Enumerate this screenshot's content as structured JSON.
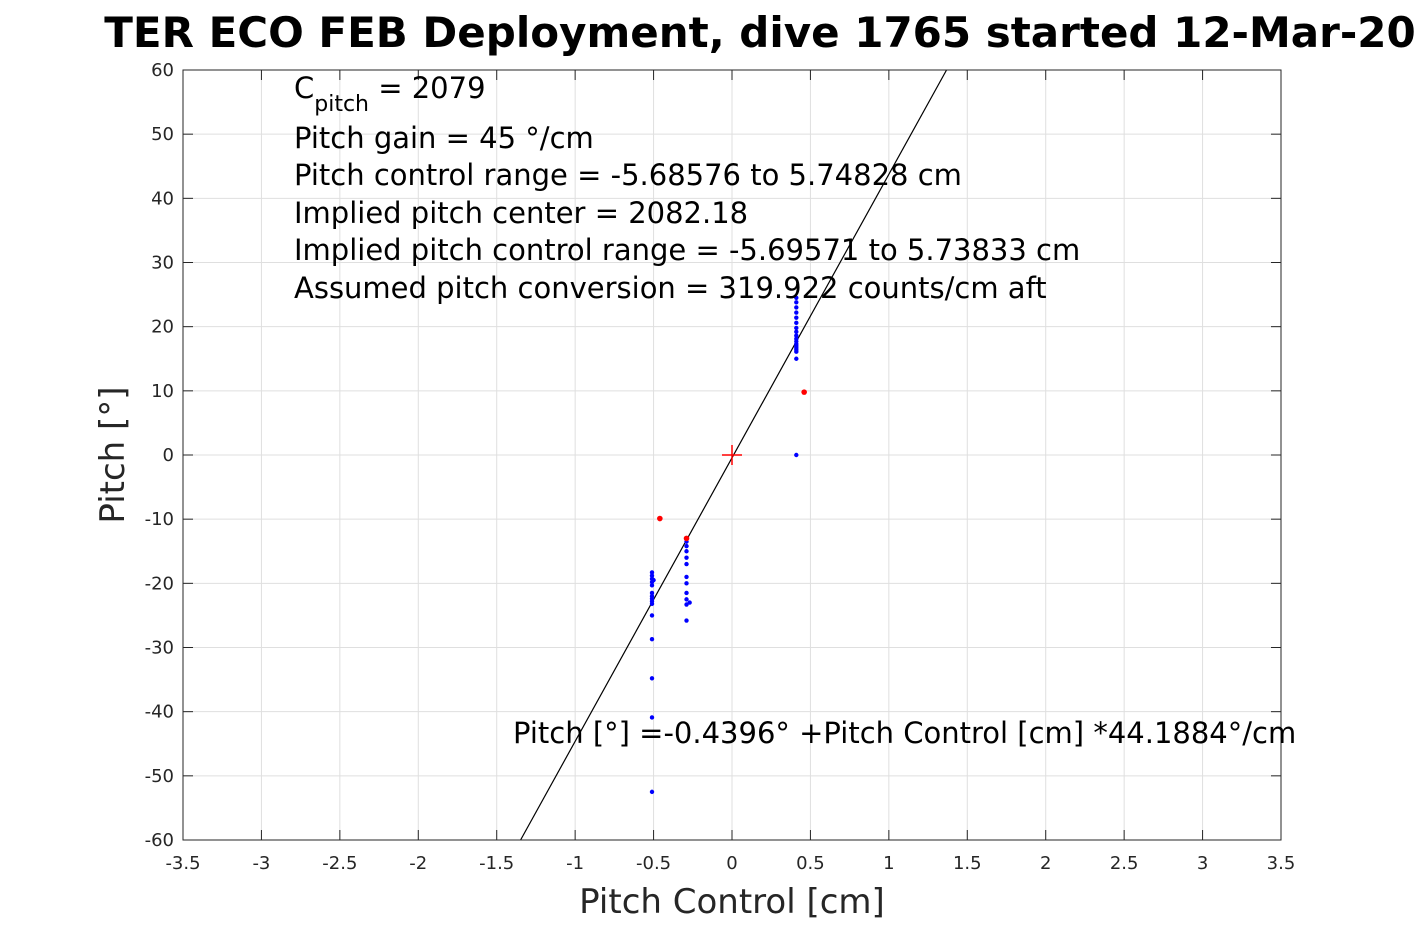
{
  "chart_data": {
    "type": "scatter",
    "title": "TER ECO FEB Deployment, dive 1765 started 12-Mar-20",
    "xlabel": "Pitch Control [cm]",
    "ylabel": "Pitch [°]",
    "xlim": [
      -3.5,
      3.5
    ],
    "ylim": [
      -60,
      60
    ],
    "xticks": [
      -3.5,
      -3,
      -2.5,
      -2,
      -1.5,
      -1,
      -0.5,
      0,
      0.5,
      1,
      1.5,
      2,
      2.5,
      3,
      3.5
    ],
    "xtick_labels": [
      "-3.5",
      "-3",
      "-2.5",
      "-2",
      "-1.5",
      "-1",
      "-0.5",
      "0",
      "0.5",
      "1",
      "1.5",
      "2",
      "2.5",
      "3",
      "3.5"
    ],
    "yticks": [
      -60,
      -50,
      -40,
      -30,
      -20,
      -10,
      0,
      10,
      20,
      30,
      40,
      50,
      60
    ],
    "ytick_labels": [
      "-60",
      "-50",
      "-40",
      "-30",
      "-20",
      "-10",
      "0",
      "10",
      "20",
      "30",
      "40",
      "50",
      "60"
    ],
    "grid": true,
    "annotations": {
      "c_pitch_symbol": "C",
      "c_pitch_subscript": "pitch",
      "c_pitch_value": " = 2079",
      "pitch_gain": "Pitch gain = 45 °/cm",
      "control_range": "Pitch control range = -5.68576 to 5.74828 cm",
      "implied_center": "Implied pitch center = 2082.18",
      "implied_range": "Implied pitch control range = -5.69571 to 5.73833 cm",
      "conversion": "Assumed pitch conversion = 319.922 counts/cm aft",
      "fit_equation": "Pitch [°] =-0.4396° +Pitch Control [cm] *44.1884°/cm"
    },
    "fit_line": {
      "intercept": -0.4396,
      "slope": 44.1884,
      "color": "#000000"
    },
    "center_marker": {
      "x": 0,
      "y": 0,
      "color": "#ff0000"
    },
    "series": [
      {
        "color": "#0000ff",
        "points": [
          [
            0.41,
            24.5
          ],
          [
            0.41,
            23.8
          ],
          [
            0.41,
            23.0
          ],
          [
            0.41,
            22.2
          ],
          [
            0.41,
            21.4
          ],
          [
            0.41,
            20.6
          ],
          [
            0.41,
            19.8
          ],
          [
            0.41,
            19.2
          ],
          [
            0.41,
            18.6
          ],
          [
            0.41,
            18.1
          ],
          [
            0.41,
            17.7
          ],
          [
            0.41,
            17.3
          ],
          [
            0.41,
            17.0
          ],
          [
            0.41,
            16.7
          ],
          [
            0.41,
            16.4
          ],
          [
            0.41,
            16.1
          ],
          [
            0.41,
            15.0
          ],
          [
            0.41,
            0.0
          ],
          [
            -0.29,
            -13.5
          ],
          [
            -0.29,
            -14.2
          ],
          [
            -0.29,
            -15.0
          ],
          [
            -0.29,
            -16.0
          ],
          [
            -0.29,
            -17.0
          ],
          [
            -0.29,
            -19.0
          ],
          [
            -0.29,
            -20.0
          ],
          [
            -0.29,
            -21.5
          ],
          [
            -0.29,
            -22.5
          ],
          [
            -0.29,
            -23.3
          ],
          [
            -0.27,
            -23.0
          ],
          [
            -0.29,
            -25.8
          ],
          [
            -0.51,
            -18.3
          ],
          [
            -0.51,
            -18.8
          ],
          [
            -0.51,
            -19.3
          ],
          [
            -0.51,
            -19.8
          ],
          [
            -0.51,
            -20.3
          ],
          [
            -0.51,
            -21.5
          ],
          [
            -0.51,
            -22.0
          ],
          [
            -0.51,
            -22.4
          ],
          [
            -0.51,
            -22.8
          ],
          [
            -0.51,
            -23.2
          ],
          [
            -0.5,
            -19.5
          ],
          [
            -0.51,
            -25.0
          ],
          [
            -0.51,
            -28.7
          ],
          [
            -0.51,
            -34.8
          ],
          [
            -0.51,
            -40.9
          ],
          [
            -0.51,
            -52.5
          ]
        ]
      },
      {
        "color": "#ff0000",
        "points": [
          [
            0.46,
            9.8
          ],
          [
            -0.46,
            -9.9
          ],
          [
            -0.29,
            -13.0
          ]
        ]
      }
    ]
  }
}
